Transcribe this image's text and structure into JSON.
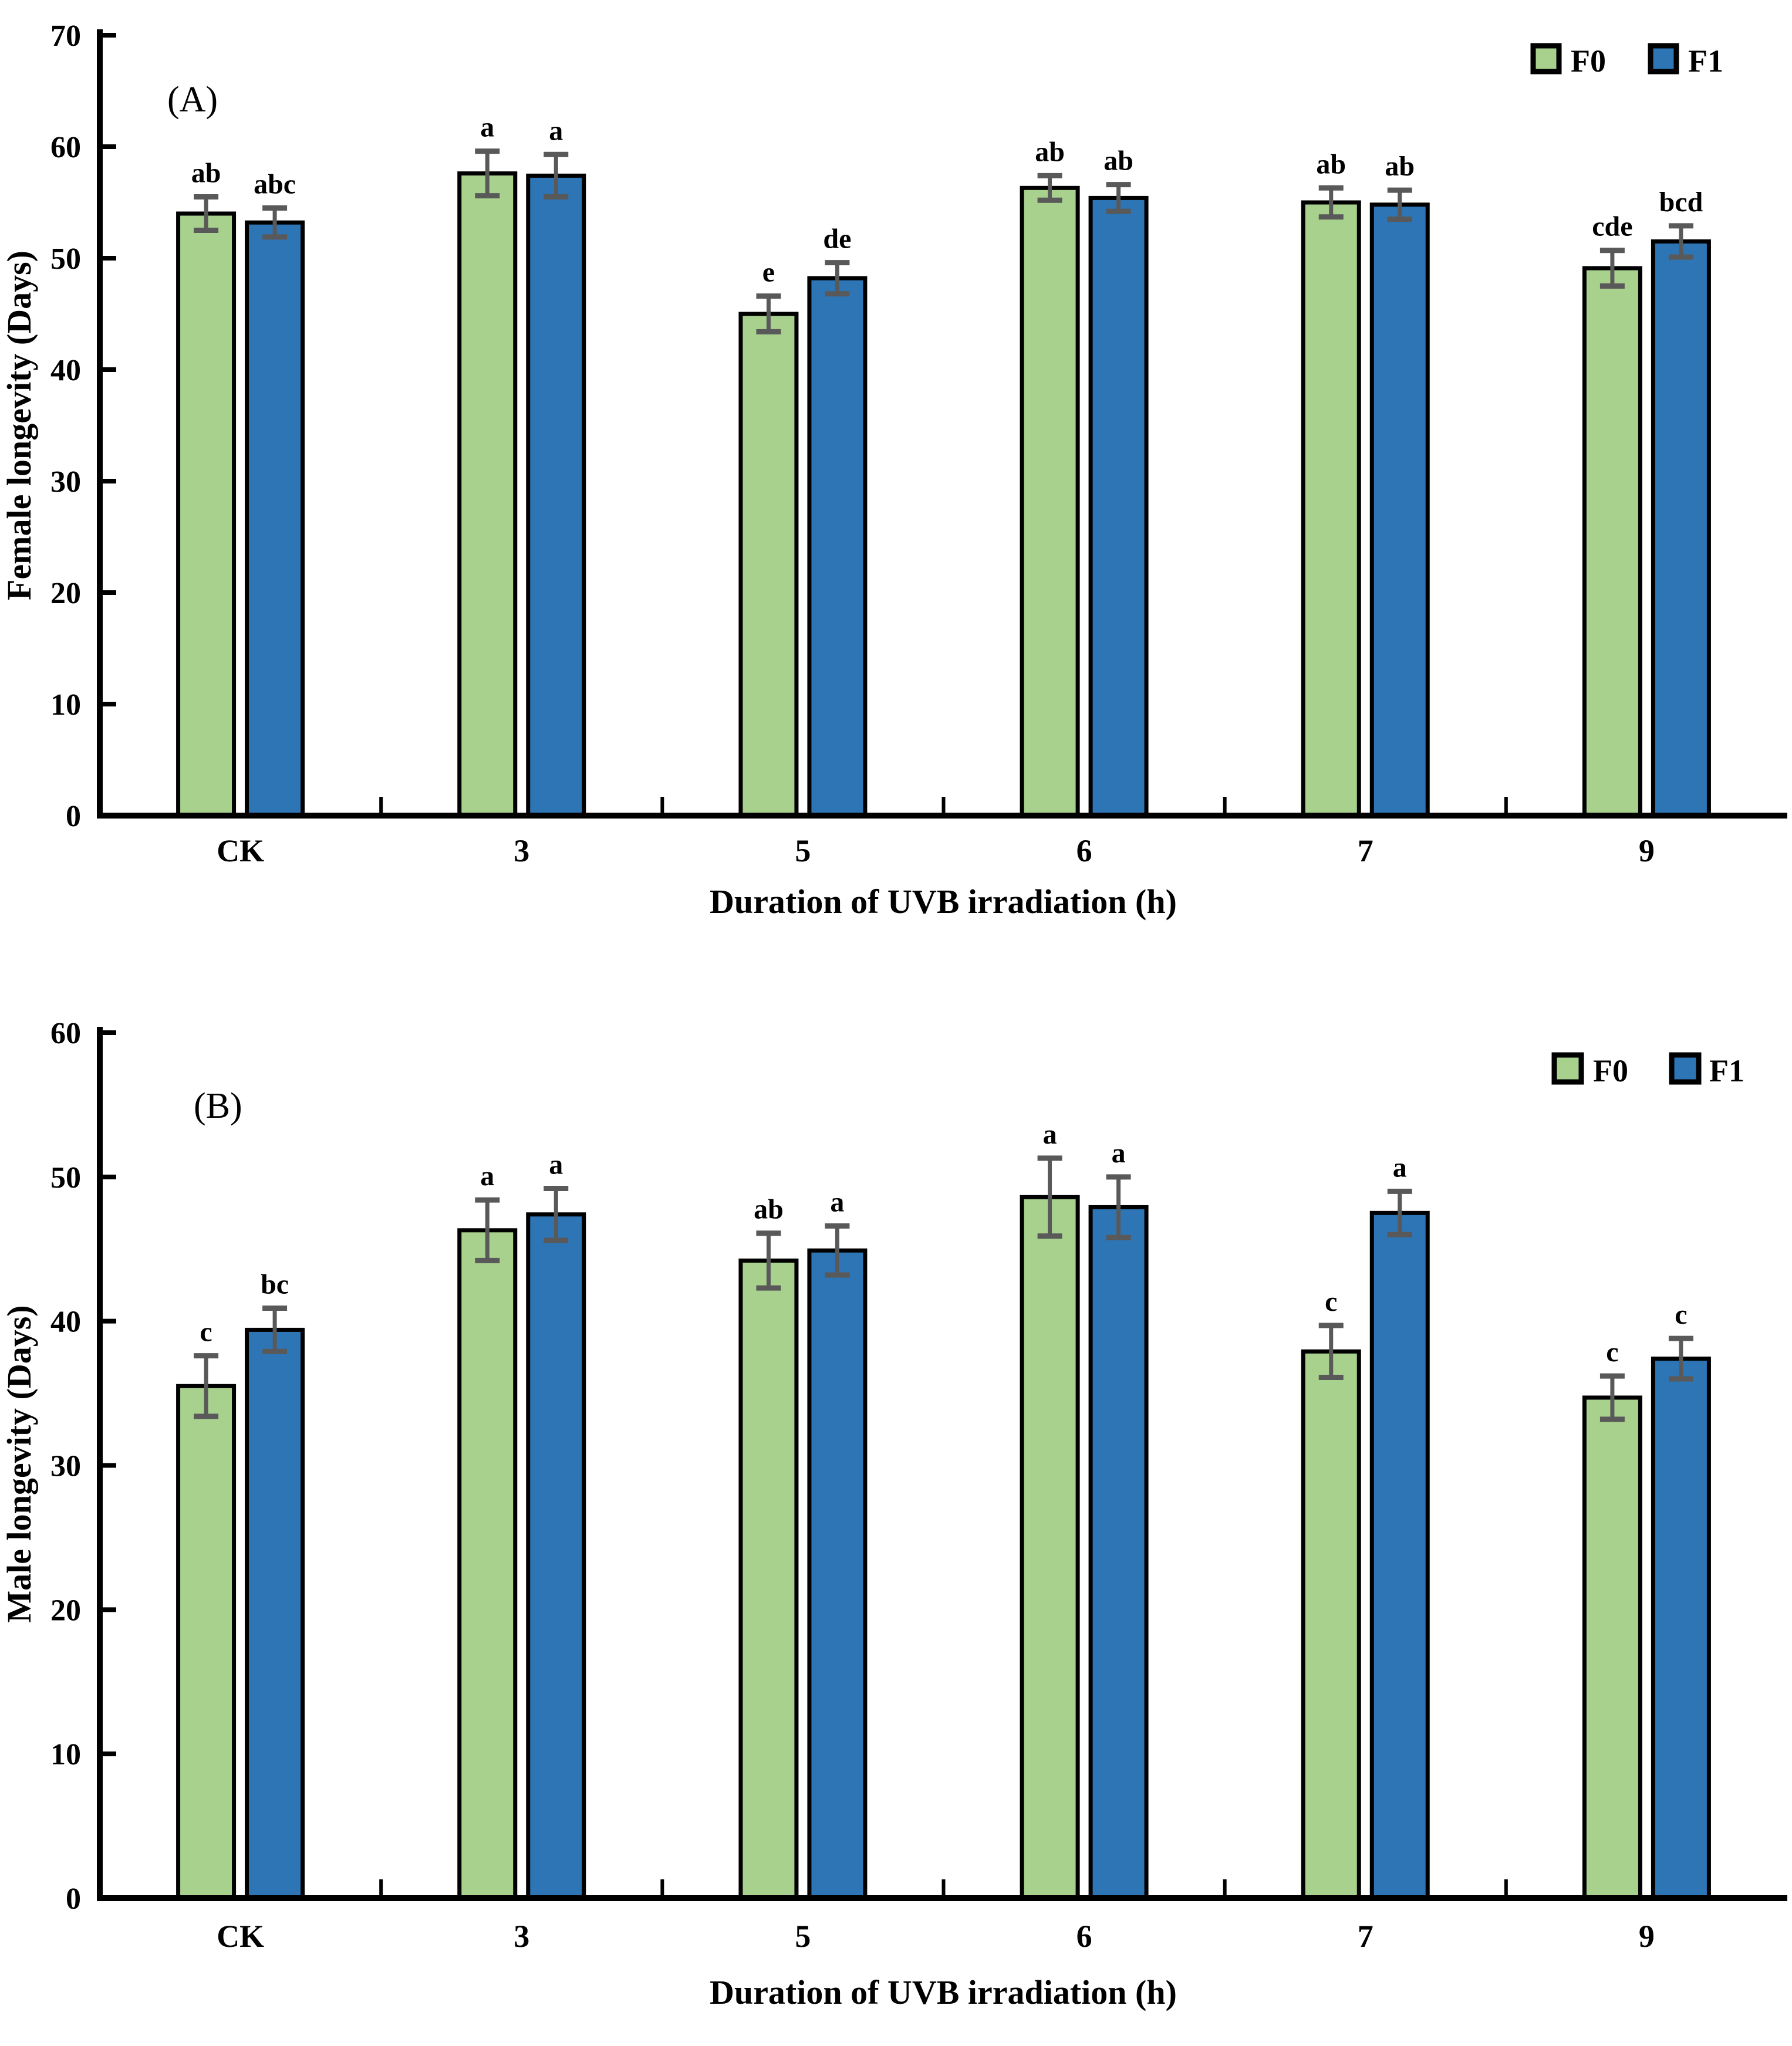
{
  "figure": {
    "background": "#ffffff",
    "text_color": "#000000",
    "axis_color": "#000000",
    "error_bar_color": "#595959"
  },
  "chart_data": [
    {
      "type": "bar",
      "panel_label": "(A)",
      "xlabel": "Duration of UVB irradiation (h)",
      "ylabel": "Female longevity (Days)",
      "categories": [
        "CK",
        "3",
        "5",
        "6",
        "7",
        "9"
      ],
      "ylim": [
        0,
        70
      ],
      "ytick_step": 10,
      "grid": false,
      "legend_position": "top-right-inside",
      "series": [
        {
          "name": "F0",
          "color": "#a9d18e",
          "values": [
            54.0,
            57.6,
            45.0,
            56.3,
            55.0,
            49.1
          ],
          "errors": [
            1.5,
            2.0,
            1.6,
            1.1,
            1.3,
            1.6
          ],
          "letters": [
            "ab",
            "a",
            "e",
            "ab",
            "ab",
            "cde"
          ]
        },
        {
          "name": "F1",
          "color": "#2e75b6",
          "values": [
            53.2,
            57.4,
            48.2,
            55.4,
            54.8,
            51.5
          ],
          "errors": [
            1.3,
            1.9,
            1.4,
            1.2,
            1.3,
            1.4
          ],
          "letters": [
            "abc",
            "a",
            "de",
            "ab",
            "ab",
            "bcd"
          ]
        }
      ]
    },
    {
      "type": "bar",
      "panel_label": "(B)",
      "xlabel": "Duration of UVB irradiation (h)",
      "ylabel": "Male longevity (Days)",
      "categories": [
        "CK",
        "3",
        "5",
        "6",
        "7",
        "9"
      ],
      "ylim": [
        0,
        60
      ],
      "ytick_step": 10,
      "grid": false,
      "legend_position": "top-right-inside",
      "series": [
        {
          "name": "F0",
          "color": "#a9d18e",
          "values": [
            35.5,
            46.3,
            44.2,
            48.6,
            37.9,
            34.7
          ],
          "errors": [
            2.1,
            2.1,
            1.9,
            2.7,
            1.8,
            1.5
          ],
          "letters": [
            "c",
            "a",
            "ab",
            "a",
            "c",
            "c"
          ]
        },
        {
          "name": "F1",
          "color": "#2e75b6",
          "values": [
            39.4,
            47.4,
            44.9,
            47.9,
            47.5,
            37.4
          ],
          "errors": [
            1.5,
            1.8,
            1.7,
            2.1,
            1.5,
            1.4
          ],
          "letters": [
            "bc",
            "a",
            "a",
            "a",
            "a",
            "c"
          ]
        }
      ]
    }
  ]
}
